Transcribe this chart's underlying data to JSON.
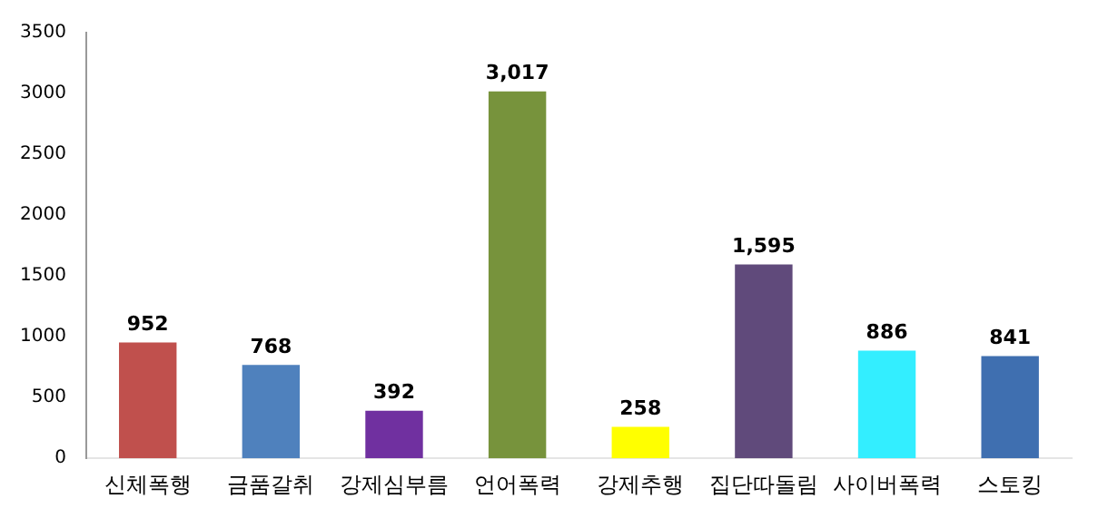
{
  "chart_data": {
    "type": "bar",
    "categories": [
      "신체폭행",
      "금품갈취",
      "강제심부름",
      "언어폭력",
      "강제추행",
      "집단따돌림",
      "사이버폭력",
      "스토킹"
    ],
    "values": [
      952,
      768,
      392,
      3017,
      258,
      1595,
      886,
      841
    ],
    "colors": [
      "#c0504d",
      "#4f81bd",
      "#7030a0",
      "#77933c",
      "#ffff00",
      "#604a7b",
      "#33eeff",
      "#3f6fb0"
    ],
    "value_labels": [
      "952",
      "768",
      "392",
      "3,017",
      "258",
      "1,595",
      "886",
      "841"
    ],
    "ylim": [
      0,
      3500
    ],
    "yticks": [
      0,
      500,
      1000,
      1500,
      2000,
      2500,
      3000,
      3500
    ],
    "grid": false,
    "legend": false
  }
}
